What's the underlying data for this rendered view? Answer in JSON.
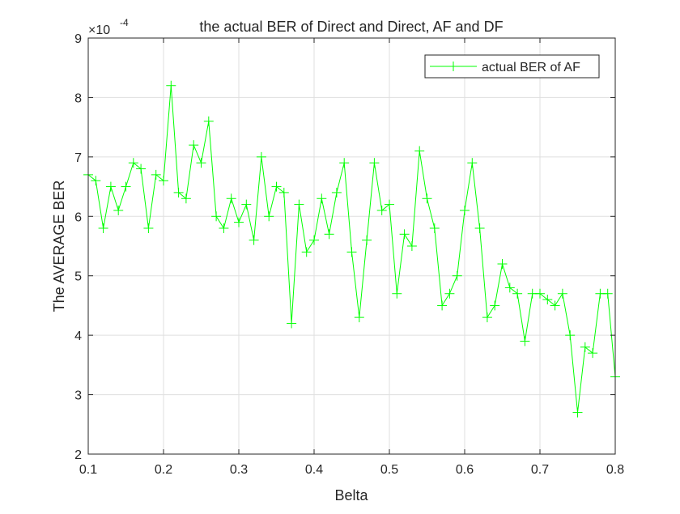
{
  "chart_data": {
    "type": "line",
    "title": "the actual BER of Direct and Direct, AF and DF",
    "xlabel": "Belta",
    "ylabel": "The AVERAGE BER",
    "y_exponent_label": "×10",
    "y_exponent_power": "-4",
    "xlim": [
      0.1,
      0.8
    ],
    "ylim": [
      2,
      9
    ],
    "xticks": [
      "0.1",
      "0.2",
      "0.3",
      "0.4",
      "0.5",
      "0.6",
      "0.7",
      "0.8"
    ],
    "yticks": [
      "2",
      "3",
      "4",
      "5",
      "6",
      "7",
      "8",
      "9"
    ],
    "grid": true,
    "legend_location": "top-right",
    "series": [
      {
        "name": "actual BER of AF",
        "color": "#00ff00",
        "marker": "plus",
        "x": [
          0.1,
          0.11,
          0.12,
          0.13,
          0.14,
          0.15,
          0.16,
          0.17,
          0.18,
          0.19,
          0.2,
          0.21,
          0.22,
          0.23,
          0.24,
          0.25,
          0.26,
          0.27,
          0.28,
          0.29,
          0.3,
          0.31,
          0.32,
          0.33,
          0.34,
          0.35,
          0.36,
          0.37,
          0.38,
          0.39,
          0.4,
          0.41,
          0.42,
          0.43,
          0.44,
          0.45,
          0.46,
          0.47,
          0.48,
          0.49,
          0.5,
          0.51,
          0.52,
          0.53,
          0.54,
          0.55,
          0.56,
          0.57,
          0.58,
          0.59,
          0.6,
          0.61,
          0.62,
          0.63,
          0.64,
          0.65,
          0.66,
          0.67,
          0.68,
          0.69,
          0.7,
          0.71,
          0.72,
          0.73,
          0.74,
          0.75,
          0.76,
          0.77,
          0.78,
          0.79,
          0.8
        ],
        "y": [
          6.7,
          6.6,
          5.8,
          6.5,
          6.1,
          6.5,
          6.9,
          6.8,
          5.8,
          6.7,
          6.6,
          8.2,
          6.4,
          6.3,
          7.2,
          6.9,
          7.6,
          6.0,
          5.8,
          6.3,
          5.9,
          6.2,
          5.6,
          7.0,
          6.0,
          6.5,
          6.4,
          4.2,
          6.2,
          5.4,
          5.6,
          6.3,
          5.7,
          6.4,
          6.9,
          5.4,
          4.3,
          5.6,
          6.9,
          6.1,
          6.2,
          4.7,
          5.7,
          5.5,
          7.1,
          6.3,
          5.8,
          4.5,
          4.7,
          5.0,
          6.1,
          6.9,
          5.8,
          4.3,
          4.5,
          5.2,
          4.8,
          4.7,
          3.9,
          4.7,
          4.7,
          4.6,
          4.5,
          4.7,
          4.0,
          2.7,
          3.8,
          3.7,
          4.7,
          4.7,
          3.3
        ]
      }
    ]
  }
}
